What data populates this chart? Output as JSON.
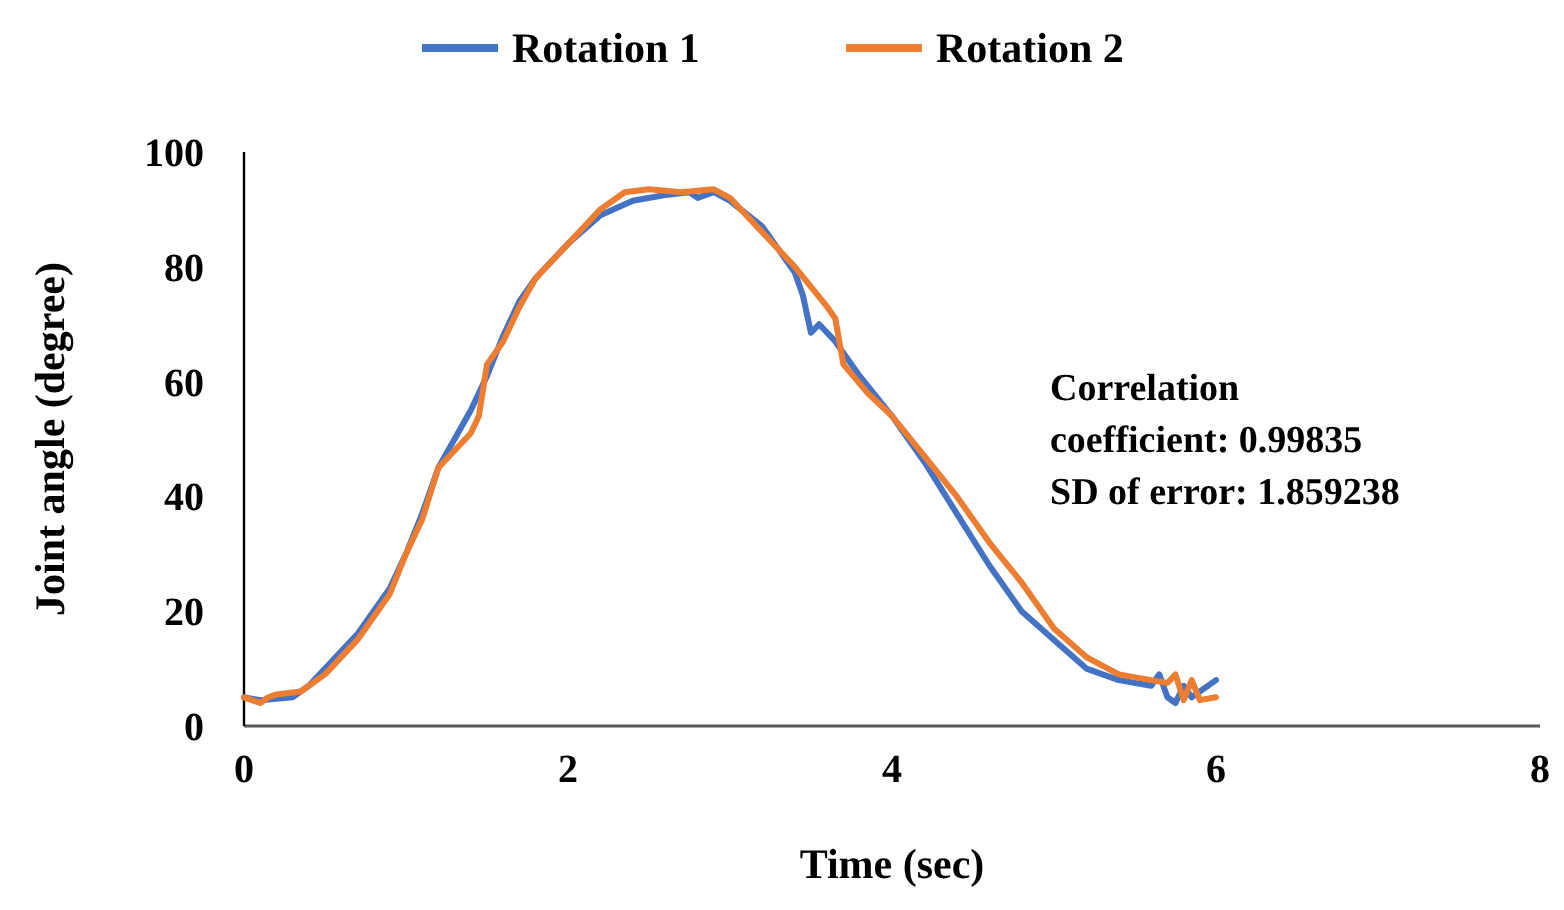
{
  "chart_data": {
    "type": "line",
    "xlabel": "Time (sec)",
    "ylabel": "Joint angle (degree)",
    "xlim": [
      0,
      8
    ],
    "xticks": [
      0,
      2,
      4,
      6,
      8
    ],
    "ylim": [
      0,
      100
    ],
    "yticks": [
      0,
      20,
      40,
      60,
      80,
      100
    ],
    "legend": "top",
    "grid": false,
    "annotations": [
      "Correlation",
      "coefficient: 0.99835",
      "SD of error: 1.859238"
    ],
    "series": [
      {
        "name": "Rotation 1",
        "color": "#4472c4",
        "x": [
          0,
          0.1,
          0.3,
          0.4,
          0.5,
          0.7,
          0.9,
          1.0,
          1.1,
          1.2,
          1.3,
          1.4,
          1.5,
          1.6,
          1.7,
          1.8,
          2.0,
          2.2,
          2.4,
          2.6,
          2.75,
          2.8,
          2.9,
          3.0,
          3.2,
          3.4,
          3.45,
          3.5,
          3.55,
          3.65,
          3.8,
          4.0,
          4.2,
          4.4,
          4.6,
          4.8,
          5.0,
          5.2,
          5.4,
          5.6,
          5.65,
          5.7,
          5.75,
          5.8,
          5.85,
          5.9,
          6.0
        ],
        "values": [
          5,
          4.5,
          5,
          7,
          10,
          16,
          24,
          30,
          37,
          45,
          50,
          55,
          61,
          68,
          74,
          78,
          84,
          89,
          91.5,
          92.5,
          93,
          92,
          93,
          91.5,
          87,
          79,
          75,
          68.5,
          70,
          67,
          61,
          54,
          46,
          37,
          28,
          20,
          15,
          10,
          8,
          7,
          9,
          5,
          4,
          7,
          5,
          6,
          8
        ]
      },
      {
        "name": "Rotation 2",
        "color": "#ed7d31",
        "x": [
          0,
          0.1,
          0.15,
          0.2,
          0.35,
          0.5,
          0.7,
          0.9,
          1.0,
          1.1,
          1.2,
          1.3,
          1.4,
          1.45,
          1.5,
          1.6,
          1.7,
          1.8,
          2.0,
          2.2,
          2.35,
          2.5,
          2.7,
          2.9,
          3.0,
          3.2,
          3.4,
          3.6,
          3.65,
          3.7,
          3.85,
          4.0,
          4.2,
          4.4,
          4.6,
          4.8,
          5.0,
          5.2,
          5.4,
          5.6,
          5.7,
          5.75,
          5.8,
          5.85,
          5.9,
          6.0
        ],
        "values": [
          5,
          4,
          5,
          5.5,
          6,
          9,
          15,
          23,
          30,
          36,
          45,
          48,
          51,
          54,
          63,
          67,
          73,
          78,
          84,
          90,
          93,
          93.5,
          93,
          93.5,
          92,
          86,
          80,
          73,
          71,
          63,
          58,
          54,
          47,
          40,
          32,
          25,
          17,
          12,
          9,
          8,
          7.5,
          9,
          4.5,
          8,
          4.5,
          5
        ]
      }
    ]
  }
}
